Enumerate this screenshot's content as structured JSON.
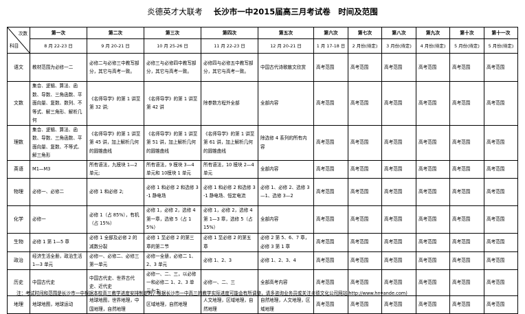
{
  "title": {
    "org": "炎德英才大联考",
    "main": "长沙市一中2015届高三月考试卷　时间及范围"
  },
  "corner": {
    "top": "次数",
    "bottom": "科目"
  },
  "columns": [
    {
      "name": "第一次",
      "date": "8 月 22-23 日"
    },
    {
      "name": "第二次",
      "date": "9 月 20-21 日"
    },
    {
      "name": "第三次",
      "date": "10 月 25-26 日"
    },
    {
      "name": "第四次",
      "date": "11 月 22-23 日"
    },
    {
      "name": "第五次",
      "date": "12 月 20-21 日"
    },
    {
      "name": "第六次",
      "date": "1 月 17-18 日"
    },
    {
      "name": "第七次",
      "date": "2 月份(待定)"
    },
    {
      "name": "第八次",
      "date": "3 月份(待定)"
    },
    {
      "name": "第九次",
      "date": "4 月份(待定)"
    },
    {
      "name": "第十次",
      "date": "5 月份(待定)"
    },
    {
      "name": "第十一次",
      "date": "5 月份(待定)"
    }
  ],
  "rows": [
    {
      "subject": "语文",
      "cells": [
        "教materials",
        "必修二与必修三中教写部分，其它与高考一致。",
        "必修三与必修四中教写部分，其它与高考一致。",
        "必修四与必修五中教写部分，其它与高考一致。",
        "中国古代诗歌散文欣赏",
        "高考范围",
        "高考范围",
        "高考范围",
        "高考范围",
        "高考范围",
        "高考范围"
      ]
    },
    {
      "subject": "文数",
      "cells": [
        "集合、逻辑、算法、函数、导数、三角函数、平面向量、复数、数列、不等式、解三角形、解析几何",
        "《名师导学》的第 1 讲至第 32 讲;",
        "《名师导学》的第 1 讲至第 42 讲",
        "除参数方程外全部",
        "全部内容",
        "高考范围",
        "高考范围",
        "高考范围",
        "高考范围",
        "高考范围",
        "高考范围"
      ]
    },
    {
      "subject": "理数",
      "cells": [
        "集合、逻辑、算法、函数、导数、三角函数、平面向量、复数、不等式、解三角形",
        "《名师导学》的第 1 讲至第 45 讲，加上解析几何的圆锥曲线",
        "《名师导学》的第 1 讲至第 51 讲，加上解析几何的圆锥曲线",
        "《名师导学》的第 1 讲至第 61 讲，加上解析几何的圆锥曲线",
        "除选修 4 系列的所有内容",
        "高考范围",
        "高考范围",
        "高考范围",
        "高考范围",
        "高考范围",
        "高考范围"
      ]
    },
    {
      "subject": "英语",
      "cells": [
        "M1—M3",
        "所有语法，九模块 1—2 单元;",
        "所有语法，9 模块 3—4 单元和 10模块 1 单元",
        "所有语法，10 模块 2—4 单元",
        "全部内容",
        "高考范围",
        "高考范围",
        "高考范围",
        "高考范围",
        "高考范围",
        "高考范围"
      ]
    },
    {
      "subject": "物理",
      "cells": [
        "必修一、必修二",
        "必修 1 和必修 2;",
        "必修 1 和必修 2 和选修 3-1 静电场",
        "必修 1 和必修 2 和选修 3-1 静电场、恒定电流",
        "必修 1、必修 2、选修 3—1、选修 3—2",
        "高考范围",
        "高考范围",
        "高考范围",
        "高考范围",
        "高考范围",
        "高考范围"
      ]
    },
    {
      "subject": "化学",
      "cells": [
        "必修一",
        "必修 1（占 85%），有机（占 15%）",
        "必修 1，必修 2，选修 4 第一章，选修 5（占 15%）",
        "必修 1，必修 2，选修 4 第 1—3 章，选修 5（占 15%）",
        "全部内容",
        "高考范围",
        "高考范围",
        "高考范围",
        "高考范围",
        "高考范围",
        "高考范围"
      ]
    },
    {
      "subject": "生物",
      "cells": [
        "必修 1 第 1—5 章",
        "必修 1 全部及必修 2 的减数分裂",
        "必修 1 至必修 2 的第三章的第二节",
        "必修 1 至必修 2 的第五章",
        "必修 2 第 5、6、7 章，必修 3 第 1 章",
        "高考范围",
        "高考范围",
        "高考范围",
        "高考范围",
        "高考范围",
        "高考范围"
      ]
    },
    {
      "subject": "政治",
      "cells": [
        "经济生活全册，政治生活 1—3 单元",
        "必修一、必修二、必修三第一单元",
        "必修一全册，必修二 1、2、3 单元",
        "必修 1、2、3",
        "必修 1、2、3、4",
        "高考范围",
        "高考范围",
        "高考范围",
        "高考范围",
        "高考范围",
        "高考范围"
      ]
    },
    {
      "subject": "历史",
      "cells": [
        "中国古代史",
        "中国古代史、世界古代史、近代史",
        "必修一、二、三，以必修一和必修二 1、2、3 单元为主",
        "必修一、二、三",
        "全部高考内容",
        "高考范围",
        "高考范围",
        "高考范围",
        "高考范围",
        "高考范围",
        "高考范围"
      ]
    },
    {
      "subject": "地理",
      "cells": [
        "地球地图，地球运动",
        "地球地图，世界地理，中国地理，自然地理",
        "区域地理，自然地理",
        "人文地理，区域地理，自然地理",
        "自然地理，人文地理，区域地理",
        "高考范围",
        "高考范围",
        "高考范围",
        "高考范围",
        "高考范围",
        "高考范围"
      ]
    }
  ],
  "note": "注：考试时间和范围是长沙市一中根据本校高三教学进度安排制定的，根据长沙市一中高三的教学实际进度可能会有所调整，请多咨询业务员或关注炎德文化公司网站 http://www.hnyande.com)"
}
